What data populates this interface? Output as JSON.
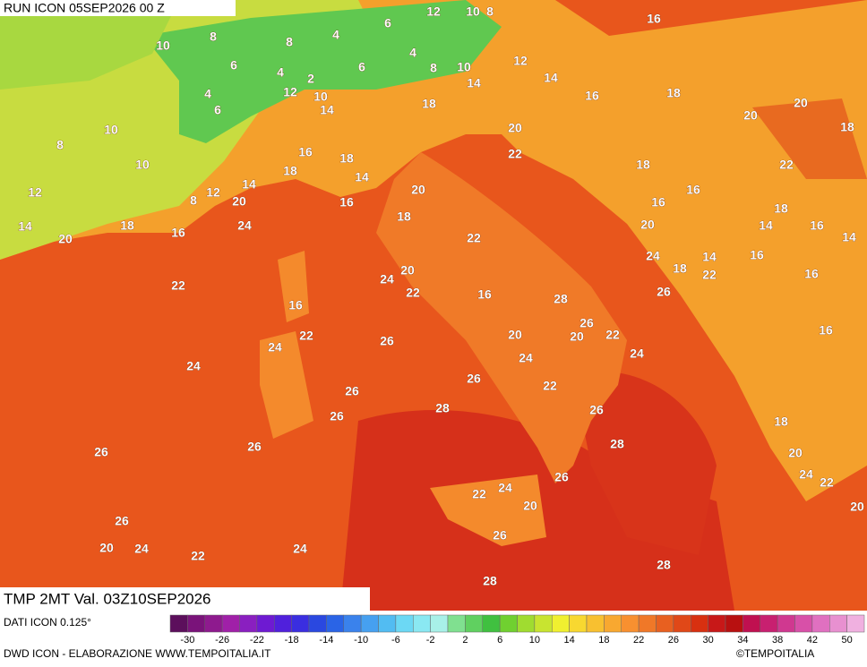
{
  "header": {
    "run": "RUN ICON 05SEP2026 00 Z"
  },
  "map": {
    "labels": [
      12,
      10,
      8,
      16,
      6,
      8,
      8,
      4,
      10,
      4,
      6,
      4,
      6,
      8,
      10,
      12,
      2,
      14,
      4,
      12,
      10,
      14,
      16,
      18,
      6,
      14,
      18,
      20,
      20,
      10,
      18,
      20,
      8,
      16,
      22,
      18,
      10,
      18,
      22,
      18,
      14,
      14,
      20,
      16,
      12,
      12,
      8,
      20,
      16,
      16,
      18,
      18,
      14,
      18,
      24,
      16,
      20,
      14,
      16,
      20,
      22,
      14,
      24,
      14,
      16,
      18,
      22,
      16,
      20,
      24,
      22,
      22,
      16,
      28,
      26,
      16,
      26,
      22,
      20,
      20,
      22,
      16,
      24,
      26,
      24,
      24,
      24,
      26,
      22,
      26,
      26,
      28,
      26,
      18,
      28,
      26,
      26,
      20,
      24,
      26,
      22,
      24,
      22,
      20,
      20,
      26,
      26,
      20,
      24,
      24,
      22,
      28,
      28
    ]
  },
  "colorbar": {
    "colors": [
      "#5c0f5c",
      "#7a137a",
      "#8e1a8e",
      "#a020a8",
      "#8a1fc0",
      "#6e1ad2",
      "#5020dc",
      "#3a2ee0",
      "#2a48e0",
      "#2a64e6",
      "#3a82ec",
      "#46a0f0",
      "#52bcf2",
      "#6cd8f4",
      "#8ae8f2",
      "#a8f0e8",
      "#80e090",
      "#60d060",
      "#40c040",
      "#70d030",
      "#a0dc30",
      "#c8e430",
      "#f0f030",
      "#f8d830",
      "#f8c030",
      "#f8a830",
      "#f89030",
      "#f07828",
      "#e86020",
      "#e04818",
      "#d83010",
      "#c81818",
      "#b81010",
      "#c01050",
      "#c82070",
      "#d03890",
      "#d850a8",
      "#e070c0",
      "#e890d0",
      "#f0b0e0"
    ],
    "ticks": [
      -30,
      -26,
      -22,
      -18,
      -14,
      -10,
      -6,
      -2,
      2,
      6,
      10,
      14,
      18,
      22,
      26,
      30,
      34,
      38,
      42,
      50
    ]
  },
  "footer": {
    "field": "TMP 2MT Val. 03Z10SEP2026",
    "source": "DATI ICON 0.125°",
    "credit": "DWD ICON - ELABORAZIONE WWW.TEMPOITALIA.IT",
    "copyright": "©TEMPOITALIA"
  }
}
